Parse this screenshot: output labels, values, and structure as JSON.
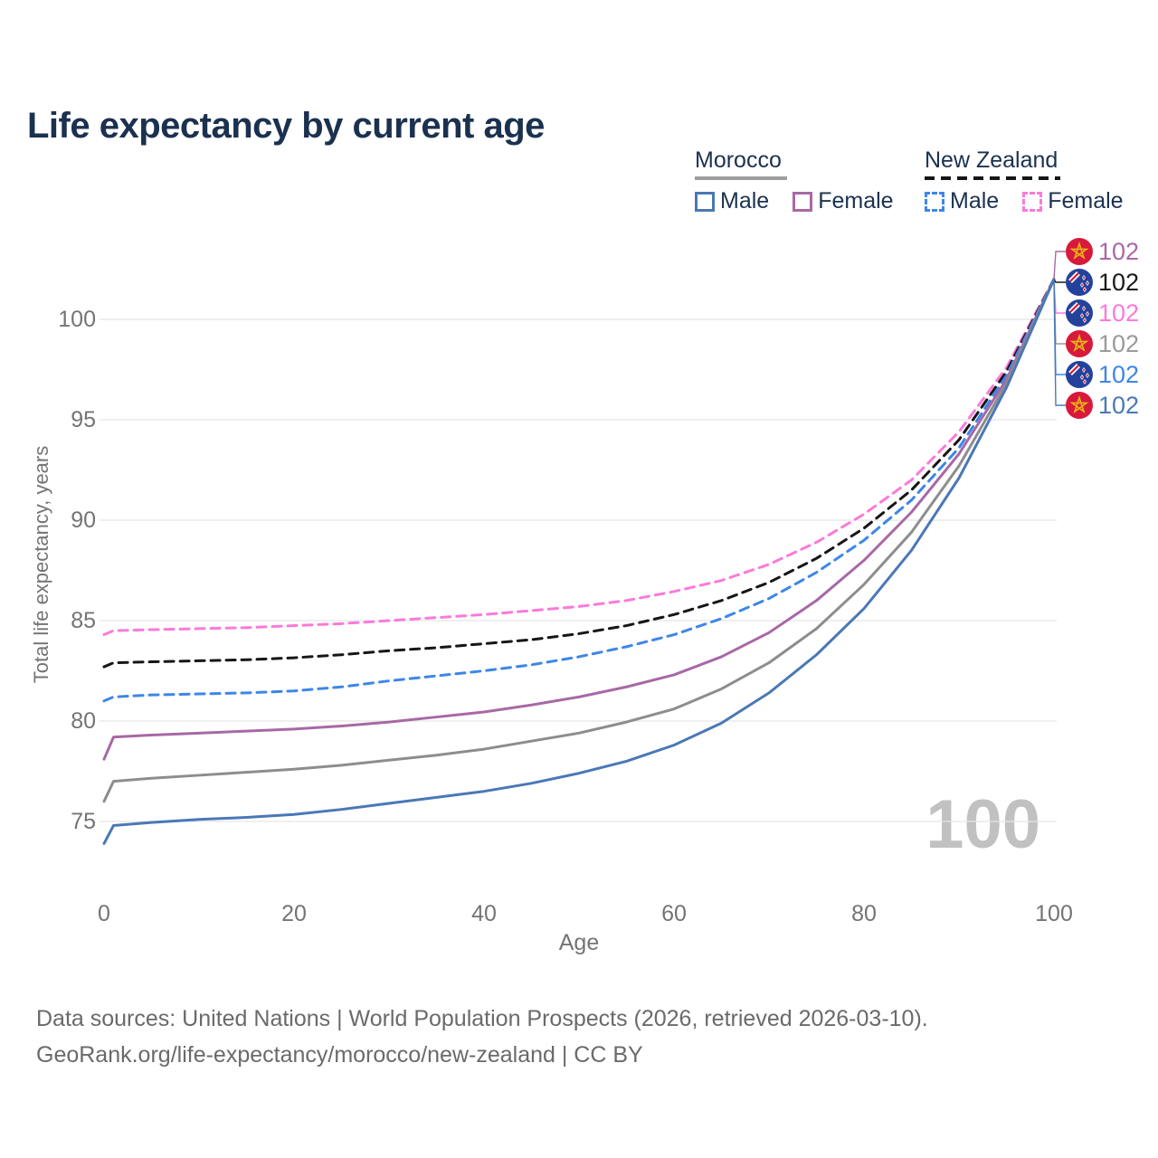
{
  "title": "Life expectancy by current age",
  "legend": {
    "groups": [
      {
        "country": "Morocco",
        "underline_style": "solid",
        "underline_color": "#9e9e9e",
        "items": [
          {
            "label": "Male",
            "color": "#4a78b6",
            "dashed": false
          },
          {
            "label": "Female",
            "color": "#a868a6",
            "dashed": false
          }
        ]
      },
      {
        "country": "New Zealand",
        "underline_style": "dashed",
        "underline_color": "#161616",
        "items": [
          {
            "label": "Male",
            "color": "#3d86e8",
            "dashed": true
          },
          {
            "label": "Female",
            "color": "#fb7ad9",
            "dashed": true
          }
        ]
      }
    ]
  },
  "chart_data": {
    "type": "line",
    "title": "Life expectancy by current age",
    "xlabel": "Age",
    "ylabel": "Total life expectancy, years",
    "xticks": [
      0,
      20,
      40,
      60,
      80,
      100
    ],
    "yticks": [
      75,
      80,
      85,
      90,
      95,
      100
    ],
    "xlim": [
      0,
      100
    ],
    "grid": "horizontal",
    "watermark": "100",
    "x": [
      0,
      1,
      5,
      10,
      15,
      20,
      25,
      30,
      35,
      40,
      45,
      50,
      55,
      60,
      65,
      70,
      75,
      80,
      85,
      90,
      95,
      100
    ],
    "series": [
      {
        "name": "New Zealand Female",
        "country": "new-zealand",
        "sex": "female",
        "color": "#fb7ad9",
        "dashed": true,
        "values": [
          84.3,
          84.5,
          84.55,
          84.6,
          84.65,
          84.75,
          84.85,
          85.0,
          85.15,
          85.3,
          85.5,
          85.7,
          86.0,
          86.45,
          87.0,
          87.8,
          88.9,
          90.3,
          92.0,
          94.4,
          97.6,
          102
        ]
      },
      {
        "name": "New Zealand Total",
        "country": "new-zealand",
        "sex": "total",
        "color": "#161616",
        "dashed": true,
        "values": [
          82.7,
          82.9,
          82.95,
          83.0,
          83.05,
          83.15,
          83.3,
          83.5,
          83.65,
          83.85,
          84.05,
          84.35,
          84.75,
          85.3,
          86.0,
          86.9,
          88.1,
          89.6,
          91.5,
          94.0,
          97.4,
          102
        ]
      },
      {
        "name": "New Zealand Male",
        "country": "new-zealand",
        "sex": "male",
        "color": "#3d86e8",
        "dashed": true,
        "values": [
          81.0,
          81.2,
          81.3,
          81.35,
          81.4,
          81.5,
          81.7,
          82.0,
          82.25,
          82.5,
          82.8,
          83.2,
          83.7,
          84.3,
          85.1,
          86.1,
          87.4,
          89.0,
          91.0,
          93.6,
          97.2,
          102
        ]
      },
      {
        "name": "Morocco Female",
        "country": "morocco",
        "sex": "female",
        "color": "#a868a6",
        "dashed": false,
        "values": [
          78.1,
          79.2,
          79.3,
          79.4,
          79.5,
          79.6,
          79.75,
          79.95,
          80.2,
          80.45,
          80.8,
          81.2,
          81.7,
          82.3,
          83.2,
          84.4,
          86.0,
          88.0,
          90.4,
          93.3,
          97.0,
          102
        ]
      },
      {
        "name": "Morocco Total",
        "country": "morocco",
        "sex": "total",
        "color": "#8d8d8d",
        "dashed": false,
        "values": [
          76.0,
          77.0,
          77.15,
          77.3,
          77.45,
          77.6,
          77.8,
          78.05,
          78.3,
          78.6,
          79.0,
          79.4,
          79.95,
          80.6,
          81.6,
          82.9,
          84.6,
          86.8,
          89.4,
          92.7,
          96.8,
          102
        ]
      },
      {
        "name": "Morocco Male",
        "country": "morocco",
        "sex": "male",
        "color": "#4a78b6",
        "dashed": false,
        "values": [
          73.9,
          74.8,
          74.95,
          75.1,
          75.2,
          75.35,
          75.6,
          75.9,
          76.2,
          76.5,
          76.9,
          77.4,
          78.0,
          78.8,
          79.9,
          81.4,
          83.3,
          85.6,
          88.5,
          92.1,
          96.6,
          102
        ]
      }
    ],
    "end_labels": [
      {
        "flag": "morocco",
        "value": "102",
        "color": "#a868a6"
      },
      {
        "flag": "new-zealand",
        "value": "102",
        "color": "#1a1a1a"
      },
      {
        "flag": "new-zealand",
        "value": "102",
        "color": "#fb7ad9"
      },
      {
        "flag": "morocco",
        "value": "102",
        "color": "#9a9a9a"
      },
      {
        "flag": "new-zealand",
        "value": "102",
        "color": "#3d86e8"
      },
      {
        "flag": "morocco",
        "value": "102",
        "color": "#4a78b6"
      }
    ]
  },
  "footer": {
    "line1": "Data sources: United Nations | World Population Prospects (2026, retrieved 2026-03-10).",
    "line2": "GeoRank.org/life-expectancy/morocco/new-zealand | CC BY"
  }
}
